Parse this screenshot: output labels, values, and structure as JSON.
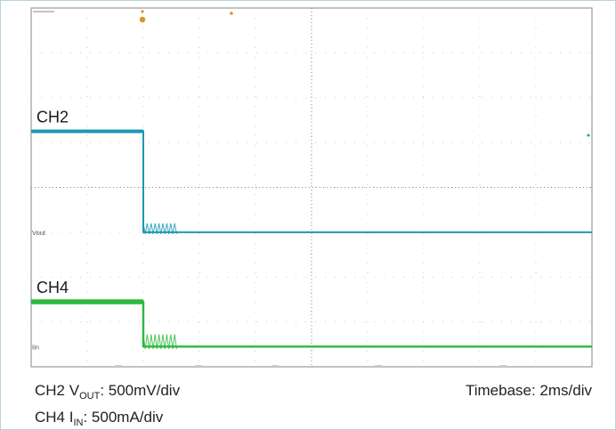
{
  "chart_data": {
    "type": "line",
    "title": "",
    "xlabel": "",
    "ylabel": "",
    "grid": true,
    "x_divisions": 10,
    "y_divisions": 8,
    "channel_labels": [
      {
        "label": "CH2",
        "color": "#1a9ab0"
      },
      {
        "label": "CH4",
        "color": "#2db83d"
      }
    ],
    "marker_labels": [
      {
        "label": "Vout",
        "color": "#555555"
      },
      {
        "label": "Iin",
        "color": "#555555"
      }
    ],
    "series": [
      {
        "color": "#1a9ab0",
        "x_div": [
          0,
          2.0,
          2.0,
          2.6,
          10
        ],
        "y_div": [
          5.25,
          5.25,
          3.0,
          3.0,
          3.0
        ],
        "ripple": {
          "x_start_div": 2.0,
          "x_end_div": 2.6,
          "amplitude_div": 0.2
        }
      },
      {
        "color": "#2db83d",
        "x_div": [
          0,
          2.0,
          2.0,
          2.6,
          10
        ],
        "y_div": [
          1.45,
          1.45,
          0.45,
          0.45,
          0.45
        ],
        "ripple": {
          "x_start_div": 2.0,
          "x_end_div": 2.6,
          "amplitude_div": 0.27
        }
      }
    ]
  },
  "captions": {
    "ch2_prefix": "CH2 V",
    "ch2_sub": "OUT",
    "ch2_value": ": 500mV/div",
    "timebase": "Timebase: 2ms/div",
    "ch4_prefix": "CH4 I",
    "ch4_sub": "IN",
    "ch4_value": ": 500mA/div"
  },
  "colors": {
    "grid_border": "#9a9a9a",
    "grid_dots": "#c7c7c7",
    "trigger_marker": "#e0902a"
  }
}
